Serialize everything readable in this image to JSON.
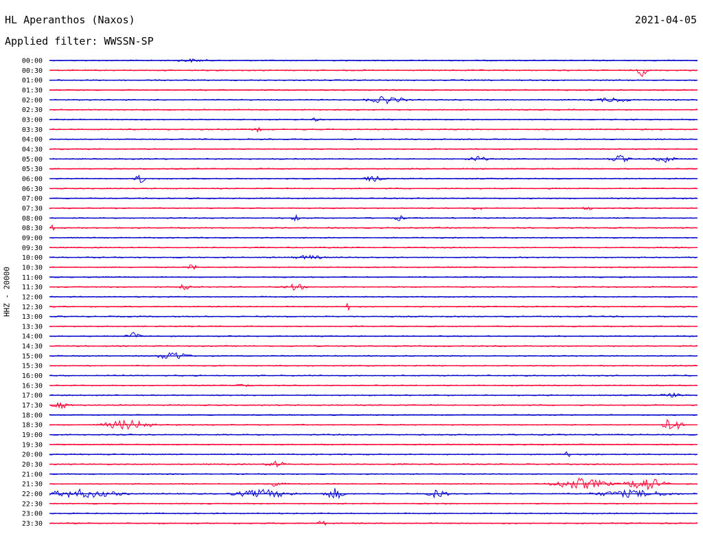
{
  "header": {
    "station": "HL Aperanthos (Naxos)",
    "date": "2021-04-05",
    "filter": "Applied filter: WWSSN-SP",
    "channel_label": "HHZ - 20000"
  },
  "colors": {
    "even": "#0000cc",
    "odd": "#ff0033"
  },
  "chart_data": {
    "type": "line",
    "title": "HL Aperanthos (Naxos)",
    "subtitle": "Applied filter: WWSSN-SP",
    "ylabel": "HHZ - 20000",
    "xlabel": "",
    "grid": false,
    "legend": "none",
    "tick_labels": [
      "00:00",
      "00:30",
      "01:00",
      "01:30",
      "02:00",
      "02:30",
      "03:00",
      "03:30",
      "04:00",
      "04:30",
      "05:00",
      "05:30",
      "06:00",
      "06:30",
      "07:00",
      "07:30",
      "08:00",
      "08:30",
      "09:00",
      "09:30",
      "10:00",
      "10:30",
      "11:00",
      "11:30",
      "12:00",
      "12:30",
      "13:00",
      "13:30",
      "14:00",
      "14:30",
      "15:00",
      "15:30",
      "16:00",
      "16:30",
      "17:00",
      "17:30",
      "18:00",
      "18:30",
      "19:00",
      "19:30",
      "20:00",
      "20:30",
      "21:00",
      "21:30",
      "22:00",
      "22:30",
      "23:00",
      "23:30"
    ],
    "event_positions_note": "",
    "events": [
      {
        "row": 0,
        "pos": 0.22,
        "amp": 2,
        "width": 0.03
      },
      {
        "row": 1,
        "pos": 0.915,
        "amp": 9,
        "width": 0.01
      },
      {
        "row": 4,
        "pos": 0.52,
        "amp": 5,
        "width": 0.04
      },
      {
        "row": 4,
        "pos": 0.87,
        "amp": 3,
        "width": 0.04
      },
      {
        "row": 6,
        "pos": 0.41,
        "amp": 2,
        "width": 0.01
      },
      {
        "row": 7,
        "pos": 0.32,
        "amp": 3,
        "width": 0.01
      },
      {
        "row": 10,
        "pos": 0.66,
        "amp": 4,
        "width": 0.02
      },
      {
        "row": 10,
        "pos": 0.88,
        "amp": 5,
        "width": 0.02
      },
      {
        "row": 10,
        "pos": 0.95,
        "amp": 5,
        "width": 0.02
      },
      {
        "row": 12,
        "pos": 0.14,
        "amp": 7,
        "width": 0.01
      },
      {
        "row": 12,
        "pos": 0.5,
        "amp": 4,
        "width": 0.02
      },
      {
        "row": 15,
        "pos": 0.66,
        "amp": 3,
        "width": 0.01
      },
      {
        "row": 15,
        "pos": 0.83,
        "amp": 3,
        "width": 0.01
      },
      {
        "row": 16,
        "pos": 0.38,
        "amp": 4,
        "width": 0.01
      },
      {
        "row": 16,
        "pos": 0.54,
        "amp": 4,
        "width": 0.01
      },
      {
        "row": 17,
        "pos": 0.005,
        "amp": 5,
        "width": 0.005
      },
      {
        "row": 20,
        "pos": 0.4,
        "amp": 3,
        "width": 0.03
      },
      {
        "row": 21,
        "pos": 0.22,
        "amp": 4,
        "width": 0.01
      },
      {
        "row": 23,
        "pos": 0.21,
        "amp": 6,
        "width": 0.01
      },
      {
        "row": 23,
        "pos": 0.38,
        "amp": 5,
        "width": 0.02
      },
      {
        "row": 25,
        "pos": 0.46,
        "amp": 10,
        "width": 0.003
      },
      {
        "row": 28,
        "pos": 0.13,
        "amp": 5,
        "width": 0.015
      },
      {
        "row": 30,
        "pos": 0.19,
        "amp": 7,
        "width": 0.03
      },
      {
        "row": 33,
        "pos": 0.3,
        "amp": 6,
        "width": 0.01
      },
      {
        "row": 34,
        "pos": 0.96,
        "amp": 3,
        "width": 0.02
      },
      {
        "row": 35,
        "pos": 0.02,
        "amp": 4,
        "width": 0.02
      },
      {
        "row": 37,
        "pos": 0.12,
        "amp": 7,
        "width": 0.05
      },
      {
        "row": 37,
        "pos": 0.96,
        "amp": 11,
        "width": 0.02
      },
      {
        "row": 40,
        "pos": 0.8,
        "amp": 6,
        "width": 0.005
      },
      {
        "row": 41,
        "pos": 0.35,
        "amp": 4,
        "width": 0.02
      },
      {
        "row": 43,
        "pos": 0.35,
        "amp": 4,
        "width": 0.02
      },
      {
        "row": 43,
        "pos": 0.82,
        "amp": 8,
        "width": 0.06
      },
      {
        "row": 43,
        "pos": 0.92,
        "amp": 10,
        "width": 0.04
      },
      {
        "row": 44,
        "pos": 0.05,
        "amp": 6,
        "width": 0.08
      },
      {
        "row": 44,
        "pos": 0.33,
        "amp": 6,
        "width": 0.06
      },
      {
        "row": 44,
        "pos": 0.44,
        "amp": 8,
        "width": 0.02
      },
      {
        "row": 44,
        "pos": 0.6,
        "amp": 7,
        "width": 0.02
      },
      {
        "row": 44,
        "pos": 0.9,
        "amp": 5,
        "width": 0.08
      },
      {
        "row": 47,
        "pos": 0.42,
        "amp": 4,
        "width": 0.01
      }
    ]
  }
}
